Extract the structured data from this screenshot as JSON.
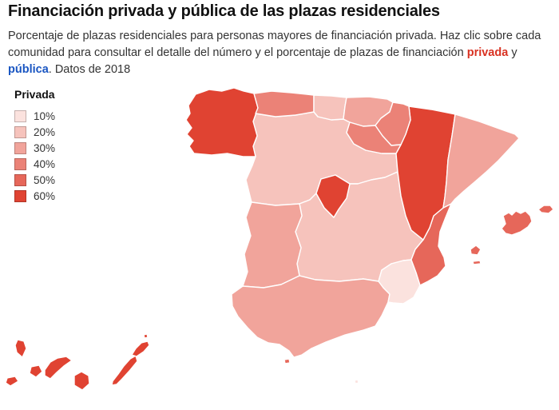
{
  "title": "Financiación privada y pública de las plazas residenciales",
  "subtitle": {
    "text_before": "Porcentaje de plazas residenciales para personas mayores de financiación privada. Haz clic sobre cada comunidad para consultar el detalle del número y el porcentaje de plazas de financiación ",
    "privada_word": "privada",
    "between": " y ",
    "publica_word": "pública",
    "text_after": ". Datos de 2018"
  },
  "colors": {
    "privada_accent": "#d93222",
    "publica_accent": "#1a56c2",
    "region_border": "#ffffff",
    "text_primary": "#111111",
    "text_secondary": "#333333"
  },
  "legend": {
    "title": "Privada",
    "items": [
      {
        "label": "10%",
        "bin": 10
      },
      {
        "label": "20%",
        "bin": 20
      },
      {
        "label": "30%",
        "bin": 30
      },
      {
        "label": "40%",
        "bin": 40
      },
      {
        "label": "50%",
        "bin": 50
      },
      {
        "label": "60%",
        "bin": 60
      }
    ]
  },
  "chart_data": {
    "type": "choropleth",
    "title": "Financiación privada y pública de las plazas residenciales",
    "legend_title": "Privada",
    "year_note": "Datos de 2018",
    "unit": "porcentaje de plazas residenciales de financiación privada (binned por color)",
    "bins": [
      10,
      20,
      30,
      40,
      50,
      60
    ],
    "bin_colors": {
      "10": "#fbe2de",
      "20": "#f6c3bc",
      "30": "#f1a49b",
      "40": "#eb8277",
      "50": "#e6675a",
      "60": "#e04332"
    },
    "regions": [
      {
        "id": "galicia",
        "name": "Galicia",
        "bin": 60
      },
      {
        "id": "asturias",
        "name": "Asturias",
        "bin": 40
      },
      {
        "id": "cantabria",
        "name": "Cantabria",
        "bin": 20
      },
      {
        "id": "pais-vasco",
        "name": "País Vasco",
        "bin": 30
      },
      {
        "id": "navarra",
        "name": "Navarra",
        "bin": 40
      },
      {
        "id": "la-rioja",
        "name": "La Rioja",
        "bin": 40
      },
      {
        "id": "aragon",
        "name": "Aragón",
        "bin": 60
      },
      {
        "id": "cataluna",
        "name": "Cataluña",
        "bin": 30
      },
      {
        "id": "castilla-y-leon",
        "name": "Castilla y León",
        "bin": 20
      },
      {
        "id": "madrid",
        "name": "Comunidad de Madrid",
        "bin": 60
      },
      {
        "id": "castilla-la-mancha",
        "name": "Castilla-La Mancha",
        "bin": 20
      },
      {
        "id": "extremadura",
        "name": "Extremadura",
        "bin": 30
      },
      {
        "id": "comunidad-valenciana",
        "name": "Comunidad Valenciana",
        "bin": 50
      },
      {
        "id": "murcia",
        "name": "Región de Murcia",
        "bin": 10
      },
      {
        "id": "andalucia",
        "name": "Andalucía",
        "bin": 30
      },
      {
        "id": "baleares",
        "name": "Islas Baleares",
        "bin": 50
      },
      {
        "id": "canarias",
        "name": "Canarias",
        "bin": 60
      },
      {
        "id": "ceuta",
        "name": "Ceuta",
        "bin": 50
      },
      {
        "id": "melilla",
        "name": "Melilla",
        "bin": 10
      }
    ]
  }
}
